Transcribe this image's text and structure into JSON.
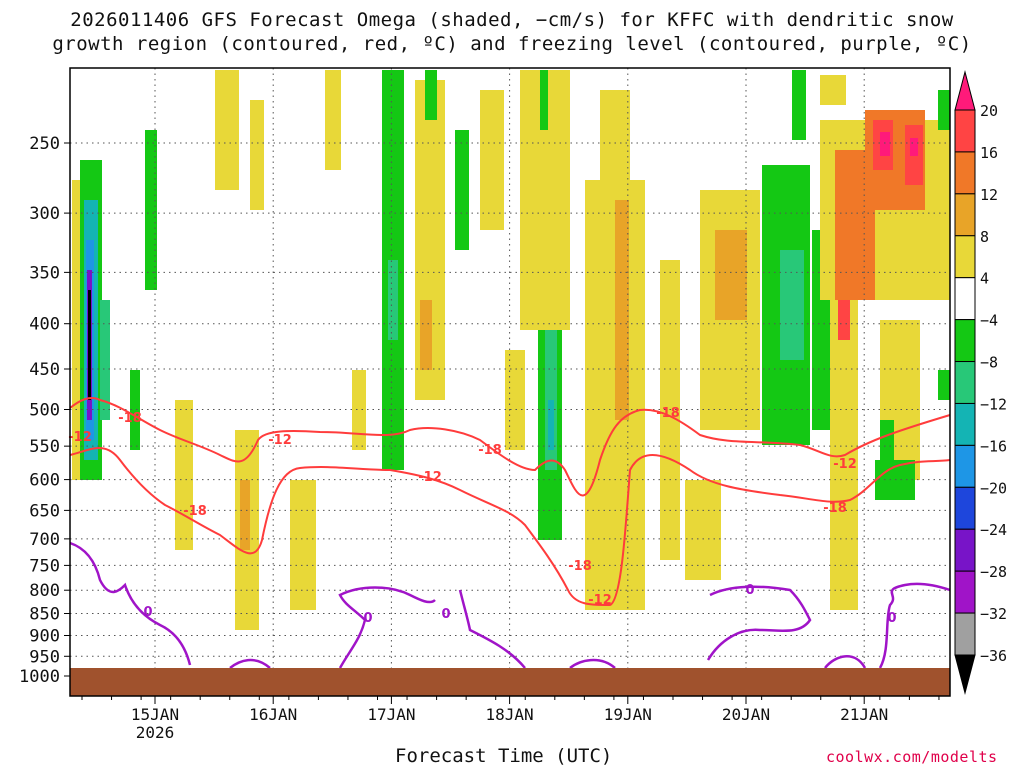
{
  "title": {
    "line1": "2026011406 GFS Forecast Omega (shaded, −cm/s) for KFFC with dendritic snow",
    "line2": "growth region (contoured, red, ºC) and freezing level (contoured, purple, ºC)"
  },
  "x_axis_title": "Forecast Time (UTC)",
  "credit": "coolwx.com/modelts",
  "chart_data": {
    "type": "heatmap",
    "y_axis": {
      "scale": "pressure",
      "ticks": [
        250,
        300,
        350,
        400,
        450,
        500,
        550,
        600,
        650,
        700,
        750,
        800,
        850,
        900,
        950,
        1000
      ]
    },
    "x_axis": {
      "ticks": [
        {
          "label": "15JAN",
          "sub": "2026"
        },
        {
          "label": "16JAN",
          "sub": ""
        },
        {
          "label": "17JAN",
          "sub": ""
        },
        {
          "label": "18JAN",
          "sub": ""
        },
        {
          "label": "19JAN",
          "sub": ""
        },
        {
          "label": "20JAN",
          "sub": ""
        },
        {
          "label": "21JAN",
          "sub": ""
        }
      ]
    },
    "grid": true,
    "colorbar": {
      "labels": [
        "20",
        "16",
        "12",
        "8",
        "4",
        "−4",
        "−8",
        "−12",
        "−16",
        "−20",
        "−24",
        "−28",
        "−32",
        "−36"
      ],
      "colors": [
        "#ff1a7a",
        "#ff4444",
        "#f07828",
        "#e8a428",
        "#e8d838",
        "#ffffff",
        "#14c814",
        "#28c878",
        "#14b4b4",
        "#1e96e6",
        "#1e46dc",
        "#7814c8",
        "#a014c8",
        "#a0a0a0",
        "#000000"
      ]
    },
    "contour_labels": {
      "dgz_red": [
        "-18",
        "-12",
        "-18",
        "-18",
        "-12",
        "-18",
        "-12",
        "-18",
        "-12",
        "-18",
        "-12"
      ],
      "freezing_purple": [
        "0",
        "0",
        "0",
        "0",
        "0"
      ]
    },
    "colors": {
      "dgz": "#ff3c3c",
      "freezing": "#a014c8",
      "ground": "#a0522d"
    }
  }
}
